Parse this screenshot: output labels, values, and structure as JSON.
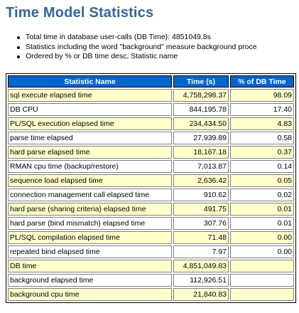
{
  "page": {
    "title": "Time Model Statistics"
  },
  "notes": [
    "Total time in database user-calls (DB Time): 4851049.8s",
    "Statistics including the word \"background\" measure background proce",
    "Ordered by % or DB time desc, Statistic name"
  ],
  "table": {
    "headers": {
      "name": "Statistic Name",
      "time": "Time (s)",
      "pct": "% of DB Time"
    },
    "rows": [
      {
        "name": "sql execute elapsed time",
        "time": "4,758,298.37",
        "pct": "98.09"
      },
      {
        "name": "DB CPU",
        "time": "844,195.78",
        "pct": "17.40"
      },
      {
        "name": "PL/SQL execution elapsed time",
        "time": "234,434.50",
        "pct": "4.83"
      },
      {
        "name": "parse time elapsed",
        "time": "27,939.89",
        "pct": "0.58"
      },
      {
        "name": "hard parse elapsed time",
        "time": "18,167.18",
        "pct": "0.37"
      },
      {
        "name": "RMAN cpu time (backup/restore)",
        "time": "7,013.87",
        "pct": "0.14"
      },
      {
        "name": "sequence load elapsed time",
        "time": "2,636.42",
        "pct": "0.05"
      },
      {
        "name": "connection management call elapsed time",
        "time": "910.62",
        "pct": "0.02"
      },
      {
        "name": "hard parse (sharing criteria) elapsed time",
        "time": "491.75",
        "pct": "0.01"
      },
      {
        "name": "hard parse (bind mismatch) elapsed time",
        "time": "307.76",
        "pct": "0.01"
      },
      {
        "name": "PL/SQL compilation elapsed time",
        "time": "71.48",
        "pct": "0.00"
      },
      {
        "name": "repeated bind elapsed time",
        "time": "7.97",
        "pct": "0.00"
      },
      {
        "name": "DB time",
        "time": "4,851,049.83",
        "pct": ""
      },
      {
        "name": "background elapsed time",
        "time": "112,926.51",
        "pct": ""
      },
      {
        "name": "background cpu time",
        "time": "21,840.83",
        "pct": ""
      }
    ]
  },
  "colors": {
    "title": "#336699",
    "header_bg": "#0066cc",
    "row_odd_bg": "#ffffcc",
    "row_even_bg": "#ffffff"
  }
}
